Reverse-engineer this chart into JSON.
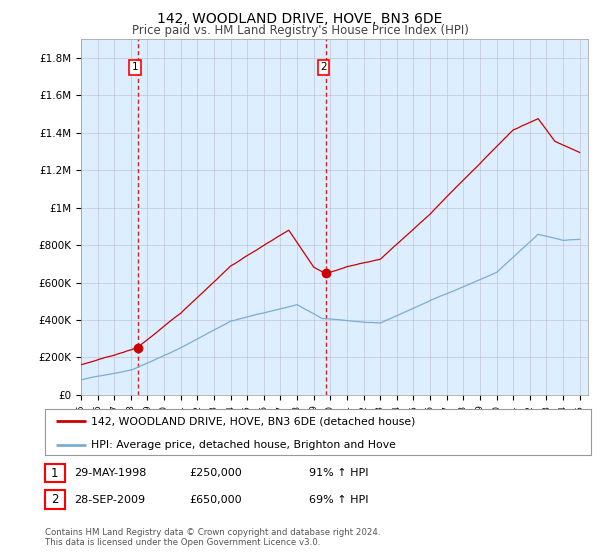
{
  "title": "142, WOODLAND DRIVE, HOVE, BN3 6DE",
  "subtitle": "Price paid vs. HM Land Registry's House Price Index (HPI)",
  "title_fontsize": 10,
  "subtitle_fontsize": 8.5,
  "ylabel_vals": [
    0,
    200000,
    400000,
    600000,
    800000,
    1000000,
    1200000,
    1400000,
    1600000,
    1800000
  ],
  "ylabel_labels": [
    "£0",
    "£200K",
    "£400K",
    "£600K",
    "£800K",
    "£1M",
    "£1.2M",
    "£1.4M",
    "£1.6M",
    "£1.8M"
  ],
  "ylim": [
    0,
    1900000
  ],
  "xmin": 1995,
  "xmax": 2025.5,
  "sale1_date": 1998.41,
  "sale1_price": 250000,
  "sale2_date": 2009.74,
  "sale2_price": 650000,
  "legend_line1": "142, WOODLAND DRIVE, HOVE, BN3 6DE (detached house)",
  "legend_line2": "HPI: Average price, detached house, Brighton and Hove",
  "sale1_text": "29-MAY-1998",
  "sale1_price_text": "£250,000",
  "sale1_hpi_text": "91% ↑ HPI",
  "sale2_text": "28-SEP-2009",
  "sale2_price_text": "£650,000",
  "sale2_hpi_text": "69% ↑ HPI",
  "house_color": "#cc0000",
  "hpi_color": "#7aadd4",
  "dot_color": "#cc0000",
  "chart_bg": "#ddeeff",
  "footnote": "Contains HM Land Registry data © Crown copyright and database right 2024.\nThis data is licensed under the Open Government Licence v3.0.",
  "background_color": "#ffffff",
  "grid_color": "#bbbbcc"
}
